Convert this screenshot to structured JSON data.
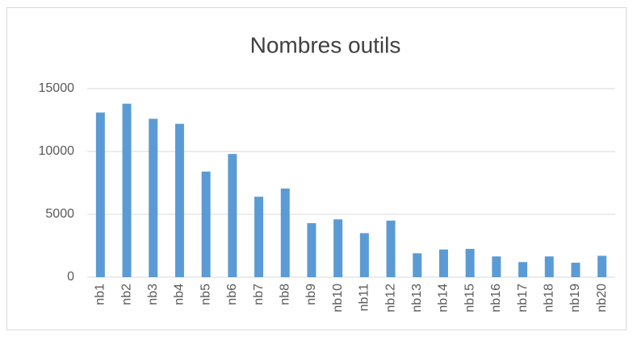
{
  "chart_data": {
    "type": "bar",
    "title": "Nombres outils",
    "categories": [
      "nb1",
      "nb2",
      "nb3",
      "nb4",
      "nb5",
      "nb6",
      "nb7",
      "nb8",
      "nb9",
      "nb10",
      "nb11",
      "nb12",
      "nb13",
      "nb14",
      "nb15",
      "nb16",
      "nb17",
      "nb18",
      "nb19",
      "nb20"
    ],
    "values": [
      13100,
      13800,
      12600,
      12200,
      8400,
      9800,
      6400,
      7050,
      4300,
      4600,
      3500,
      4500,
      1900,
      2200,
      2250,
      1650,
      1200,
      1650,
      1150,
      1700
    ],
    "color": "#5b9bd5",
    "ylim": [
      0,
      15000
    ],
    "yticks": [
      0,
      5000,
      10000,
      15000
    ],
    "grid": true
  }
}
